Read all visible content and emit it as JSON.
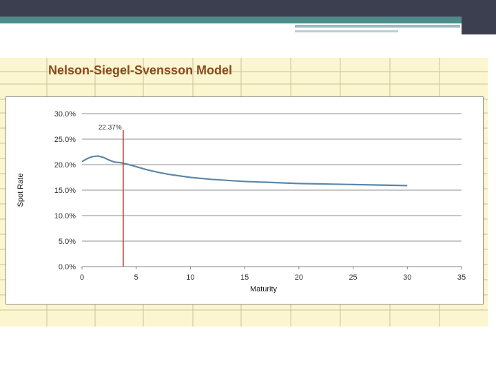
{
  "page_title": "Nelson-Siegel-Svensson Model",
  "colors": {
    "sheet_bg": "#fbf6cf",
    "title": "#8a4a1e",
    "curve": "#5b86a8",
    "marker": "#c0392b"
  },
  "chart_data": {
    "type": "line",
    "title": "",
    "xlabel": "Maturity",
    "ylabel": "Spot Rate",
    "xlim": [
      0,
      35
    ],
    "ylim": [
      0,
      30
    ],
    "x_ticks": [
      0,
      5,
      10,
      15,
      20,
      25,
      30,
      35
    ],
    "y_ticks": [
      0,
      5,
      10,
      15,
      20,
      25,
      30
    ],
    "y_tick_labels": [
      "0.0%",
      "5.0%",
      "10.0%",
      "15.0%",
      "20.0%",
      "25.0%",
      "30.0%"
    ],
    "grid": "horizontal",
    "legend": "none",
    "series": [
      {
        "x": [
          0,
          0.5,
          1,
          1.5,
          2,
          2.5,
          3,
          3.5,
          4,
          5,
          6,
          7,
          8,
          10,
          12,
          15,
          20,
          25,
          30
        ],
        "y": [
          20.6,
          21.2,
          21.6,
          21.7,
          21.4,
          20.9,
          20.5,
          20.4,
          20.2,
          19.6,
          19.0,
          18.5,
          18.1,
          17.5,
          17.1,
          16.7,
          16.3,
          16.1,
          15.9
        ]
      }
    ],
    "vertical_marker": {
      "x": 3.8,
      "label": "22.37%"
    }
  }
}
